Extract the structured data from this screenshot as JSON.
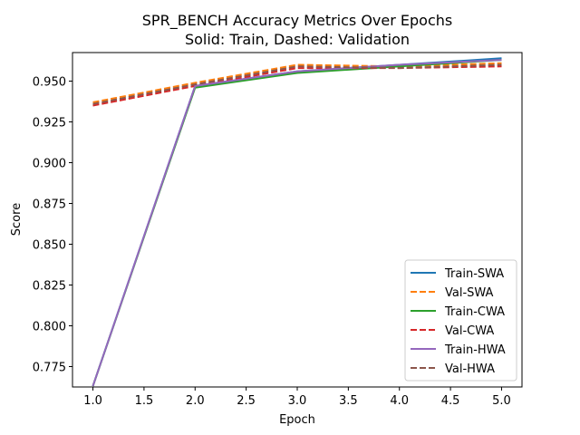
{
  "chart_data": {
    "type": "line",
    "title": "SPR_BENCH Accuracy Metrics Over Epochs",
    "subtitle": "Solid: Train, Dashed: Validation",
    "xlabel": "Epoch",
    "ylabel": "Score",
    "xlim": [
      0.8,
      5.2
    ],
    "ylim": [
      0.7625,
      0.9675
    ],
    "xticks": [
      1.0,
      1.5,
      2.0,
      2.5,
      3.0,
      3.5,
      4.0,
      4.5,
      5.0
    ],
    "xtick_labels": [
      "1.0",
      "1.5",
      "2.0",
      "2.5",
      "3.0",
      "3.5",
      "4.0",
      "4.5",
      "5.0"
    ],
    "yticks": [
      0.775,
      0.8,
      0.825,
      0.85,
      0.875,
      0.9,
      0.925,
      0.95
    ],
    "ytick_labels": [
      "0.775",
      "0.800",
      "0.825",
      "0.850",
      "0.875",
      "0.900",
      "0.925",
      "0.950"
    ],
    "grid": false,
    "legend_position": "lower-right",
    "x": [
      1,
      2,
      3,
      4,
      5
    ],
    "series": [
      {
        "name": "Train-SWA",
        "values": [
          0.763,
          0.947,
          0.956,
          0.96,
          0.964
        ],
        "color": "#1f77b4",
        "style": "solid"
      },
      {
        "name": "Val-SWA",
        "values": [
          0.937,
          0.949,
          0.96,
          0.959,
          0.961
        ],
        "color": "#ff7f0e",
        "style": "dashed"
      },
      {
        "name": "Train-CWA",
        "values": [
          0.763,
          0.946,
          0.955,
          0.959,
          0.963
        ],
        "color": "#2ca02c",
        "style": "solid"
      },
      {
        "name": "Val-CWA",
        "values": [
          0.935,
          0.947,
          0.958,
          0.958,
          0.959
        ],
        "color": "#d62728",
        "style": "dashed"
      },
      {
        "name": "Train-HWA",
        "values": [
          0.763,
          0.947,
          0.956,
          0.96,
          0.963
        ],
        "color": "#9467bd",
        "style": "solid"
      },
      {
        "name": "Val-HWA",
        "values": [
          0.936,
          0.948,
          0.959,
          0.958,
          0.96
        ],
        "color": "#8c564b",
        "style": "dashed"
      }
    ]
  }
}
